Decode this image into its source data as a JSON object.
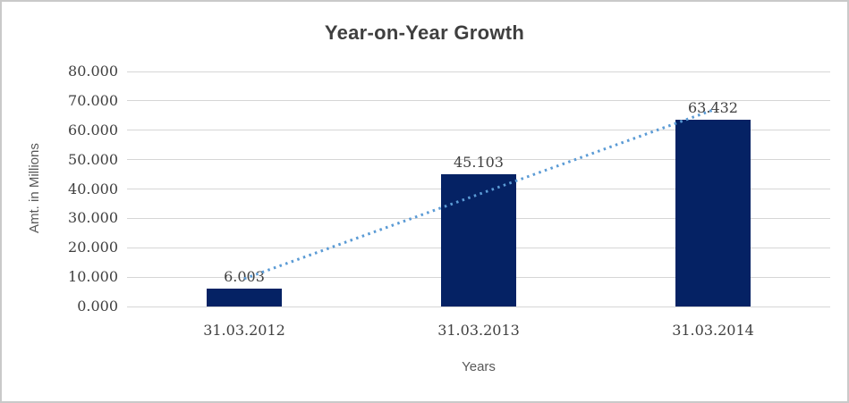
{
  "chart_data": {
    "type": "bar",
    "title": "Year-on-Year Growth",
    "categories": [
      "31.03.2012",
      "31.03.2013",
      "31.03.2014"
    ],
    "values": [
      6.003,
      45.103,
      63.432
    ],
    "data_labels": [
      "6.003",
      "45.103",
      "63.432"
    ],
    "xlabel": "Years",
    "ylabel": "Amt. in Millions",
    "ylim": [
      0,
      80
    ],
    "ytick_step": 10,
    "ytick_labels": [
      "0.000",
      "10.000",
      "20.000",
      "30.000",
      "40.000",
      "50.000",
      "60.000",
      "70.000",
      "80.000"
    ],
    "grid": true,
    "legend": "none",
    "trendline": {
      "type": "linear",
      "style": "dotted",
      "color": "#5b9bd5"
    },
    "colors": {
      "bar": "#052264",
      "gridline": "#d6d6d6",
      "title_text": "#3f3f3f",
      "tick_text": "#404040",
      "axis_title_text": "#595959",
      "trendline": "#5b9bd5",
      "border": "#c9c9c9",
      "background": "#ffffff"
    }
  }
}
